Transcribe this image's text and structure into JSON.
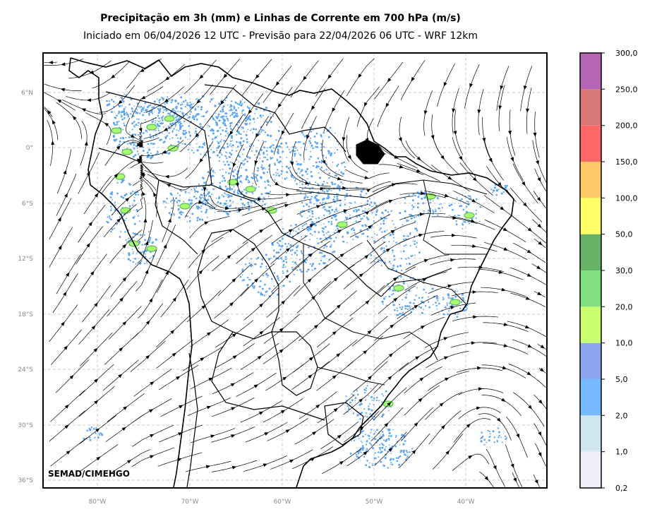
{
  "title": "Precipitação em 3h (mm) e Linhas de Corrente em 700 hPa (m/s)",
  "subtitle": "Iniciado em 06/04/2026 12 UTC - Previsão para 22/04/2026 06 UTC - WRF 12km",
  "credit": "SEMAD/CIMEHGO",
  "lat_labels": [
    "6°N",
    "0°",
    "6°S",
    "12°S",
    "18°S",
    "24°S",
    "30°S",
    "36°S"
  ],
  "lon_labels": [
    "80°W",
    "70°W",
    "60°W",
    "50°W",
    "40°W"
  ],
  "colorbar": {
    "labels": [
      "0,2",
      "1,0",
      "2,0",
      "5,0",
      "10,0",
      "20,0",
      "30,0",
      "50,0",
      "100,0",
      "150,0",
      "200,0",
      "250,0",
      "300,0"
    ],
    "colors": [
      "#eeeefa",
      "#cfe6ef",
      "#76b9ff",
      "#8ca6ef",
      "#c9ff70",
      "#80e080",
      "#66b266",
      "#ffff66",
      "#ffc868",
      "#ff6868",
      "#d87878",
      "#b466b4"
    ]
  },
  "colors": {
    "coastline": "#000000",
    "grid": "#bbbbbb",
    "streamline": "#000000",
    "light_rain": "#5aa5f2",
    "moderate_rain": "#a8ff70",
    "heavy_rain": "#5cb85c"
  },
  "icons": [
    "streamline-arrow"
  ]
}
